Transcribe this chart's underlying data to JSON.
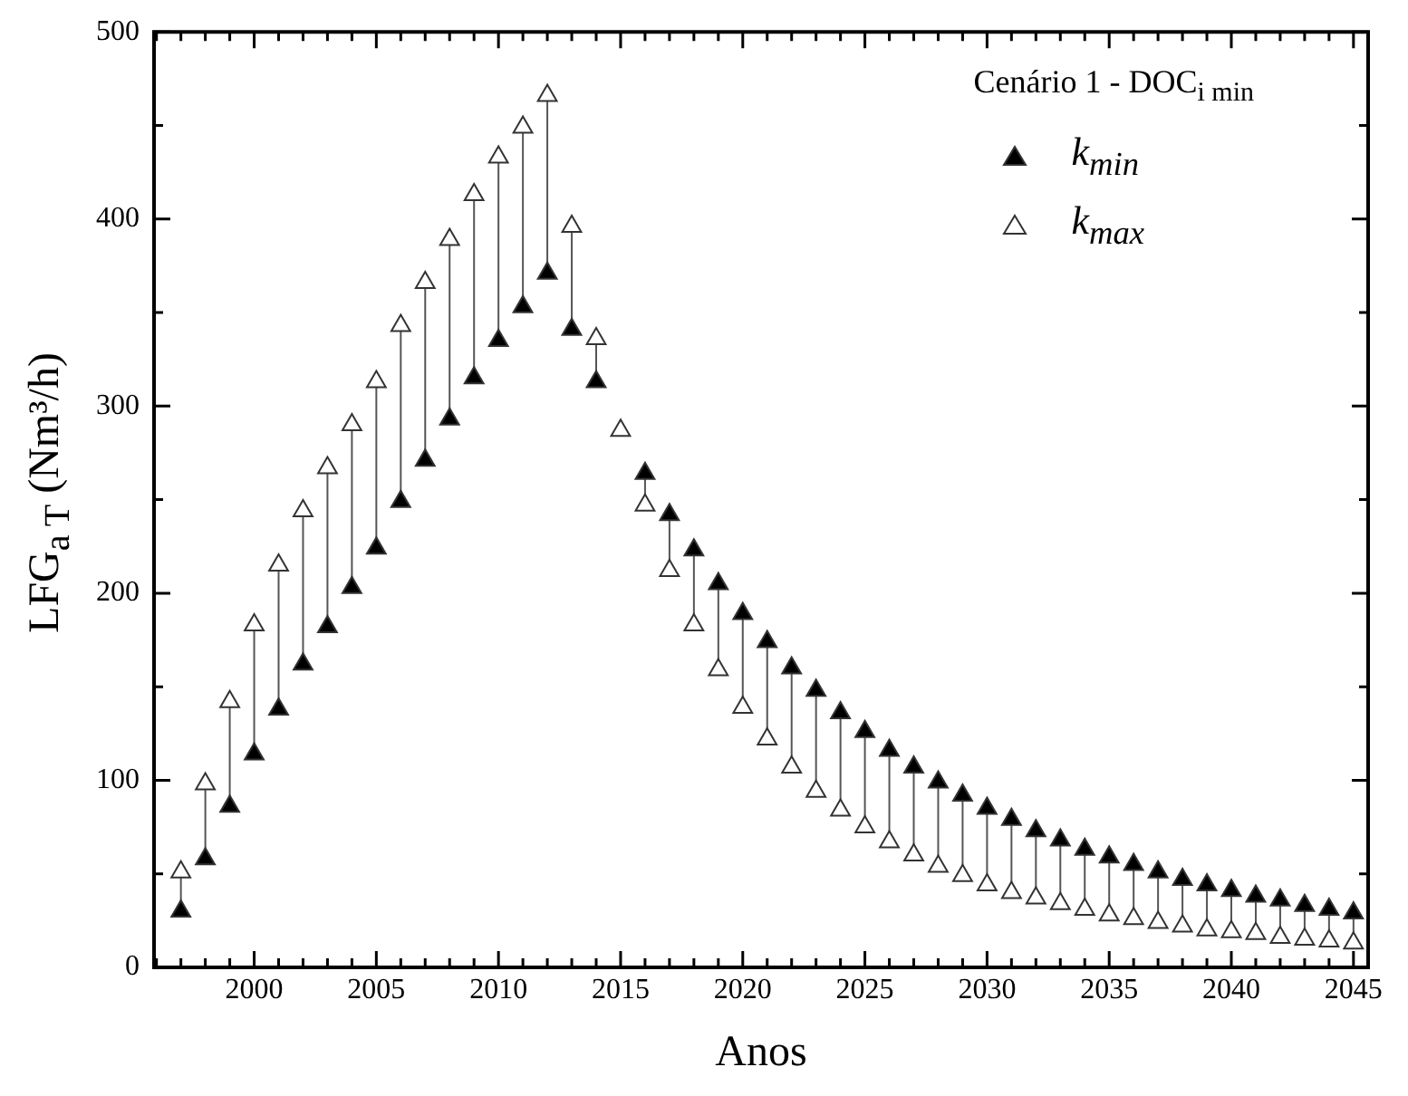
{
  "chart_data": {
    "type": "scatter",
    "xlabel": "Anos",
    "ylabel": "LFG$_{a T}$ (Nm³/h)",
    "legend_title": "Cenário 1 - DOC$_{i min}$",
    "x": [
      1997,
      1998,
      1999,
      2000,
      2001,
      2002,
      2003,
      2004,
      2005,
      2006,
      2007,
      2008,
      2009,
      2010,
      2011,
      2012,
      2013,
      2014,
      2015,
      2016,
      2017,
      2018,
      2019,
      2020,
      2021,
      2022,
      2023,
      2024,
      2025,
      2026,
      2027,
      2028,
      2029,
      2030,
      2031,
      2032,
      2033,
      2034,
      2035,
      2036,
      2037,
      2038,
      2039,
      2040,
      2041,
      2042,
      2043,
      2044,
      2045
    ],
    "series": [
      {
        "name": "k$_{min}$",
        "color": "#000000",
        "values": [
          30,
          58,
          86,
          114,
          138,
          162,
          182,
          203,
          224,
          249,
          271,
          293,
          315,
          335,
          353,
          371,
          341,
          313,
          null,
          264,
          242,
          223,
          205,
          189,
          174,
          160,
          148,
          136,
          126,
          116,
          107,
          99,
          92,
          85,
          79,
          73,
          68,
          63,
          59,
          55,
          51,
          47,
          44,
          41,
          38,
          36,
          33,
          31,
          29
        ],
        "errors": [
          [
            30,
            51
          ],
          [
            58,
            98
          ],
          [
            86,
            142
          ],
          [
            114,
            183
          ],
          [
            138,
            215
          ],
          [
            162,
            244
          ],
          [
            182,
            267
          ],
          [
            203,
            290
          ],
          [
            224,
            313
          ],
          [
            249,
            343
          ],
          [
            271,
            366
          ],
          [
            293,
            389
          ],
          [
            315,
            413
          ],
          [
            335,
            433
          ],
          [
            353,
            449
          ],
          [
            371,
            466
          ],
          [
            341,
            396
          ],
          [
            313,
            336
          ],
          null,
          [
            247,
            264
          ],
          [
            212,
            242
          ],
          [
            183,
            223
          ],
          [
            159,
            205
          ],
          [
            139,
            189
          ],
          [
            122,
            174
          ],
          [
            107,
            160
          ],
          [
            94,
            148
          ],
          [
            84,
            136
          ],
          [
            75,
            126
          ],
          [
            67,
            116
          ],
          [
            60,
            107
          ],
          [
            54,
            99
          ],
          [
            49,
            92
          ],
          [
            44,
            85
          ],
          [
            40,
            79
          ],
          [
            37,
            73
          ],
          [
            34,
            68
          ],
          [
            31,
            63
          ],
          [
            28,
            59
          ],
          [
            26,
            55
          ],
          [
            24,
            51
          ],
          [
            22,
            47
          ],
          [
            20,
            44
          ],
          [
            19,
            41
          ],
          [
            18,
            38
          ],
          [
            16,
            36
          ],
          [
            15,
            33
          ],
          [
            14,
            31
          ],
          [
            13,
            29
          ]
        ]
      },
      {
        "name": "k$_{max}$",
        "color": "#ffffff",
        "values": [
          51,
          98,
          142,
          183,
          215,
          244,
          267,
          290,
          313,
          343,
          366,
          389,
          413,
          433,
          449,
          466,
          396,
          336,
          287,
          247,
          212,
          183,
          159,
          139,
          122,
          107,
          94,
          84,
          75,
          67,
          60,
          54,
          49,
          44,
          40,
          37,
          34,
          31,
          28,
          26,
          24,
          22,
          20,
          19,
          18,
          16,
          15,
          14,
          13
        ]
      }
    ],
    "xlim": [
      1995.9,
      2045.6
    ],
    "xticks": [
      {
        "value": 1996,
        "label": null
      },
      {
        "value": 1997,
        "label": null
      },
      {
        "value": 1998,
        "label": null
      },
      {
        "value": 1999,
        "label": null
      },
      2000,
      {
        "value": 2001,
        "label": null
      },
      {
        "value": 2002,
        "label": null
      },
      {
        "value": 2003,
        "label": null
      },
      {
        "value": 2004,
        "label": null
      },
      2005,
      {
        "value": 2006,
        "label": null
      },
      {
        "value": 2007,
        "label": null
      },
      {
        "value": 2008,
        "label": null
      },
      {
        "value": 2009,
        "label": null
      },
      2010,
      {
        "value": 2011,
        "label": null
      },
      {
        "value": 2012,
        "label": null
      },
      {
        "value": 2013,
        "label": null
      },
      {
        "value": 2014,
        "label": null
      },
      2015,
      {
        "value": 2016,
        "label": null
      },
      {
        "value": 2017,
        "label": null
      },
      {
        "value": 2018,
        "label": null
      },
      {
        "value": 2019,
        "label": null
      },
      2020,
      {
        "value": 2021,
        "label": null
      },
      {
        "value": 2022,
        "label": null
      },
      {
        "value": 2023,
        "label": null
      },
      {
        "value": 2024,
        "label": null
      },
      2025,
      {
        "value": 2026,
        "label": null
      },
      {
        "value": 2027,
        "label": null
      },
      {
        "value": 2028,
        "label": null
      },
      {
        "value": 2029,
        "label": null
      },
      2030,
      {
        "value": 2031,
        "label": null
      },
      {
        "value": 2032,
        "label": null
      },
      {
        "value": 2033,
        "label": null
      },
      {
        "value": 2034,
        "label": null
      },
      2035,
      {
        "value": 2036,
        "label": null
      },
      {
        "value": 2037,
        "label": null
      },
      {
        "value": 2038,
        "label": null
      },
      {
        "value": 2039,
        "label": null
      },
      2040,
      {
        "value": 2041,
        "label": null
      },
      {
        "value": 2042,
        "label": null
      },
      {
        "value": 2043,
        "label": null
      },
      {
        "value": 2044,
        "label": null
      },
      2045
    ],
    "ylim": [
      0,
      500
    ],
    "yticks": [
      0,
      {
        "value": 50,
        "label": null
      },
      100,
      {
        "value": 150,
        "label": null
      },
      200,
      {
        "value": 250,
        "label": null
      },
      300,
      {
        "value": 350,
        "label": null
      },
      400,
      {
        "value": 450,
        "label": null
      },
      500
    ],
    "grid": false,
    "legend": "top right",
    "marker": "triangle"
  }
}
